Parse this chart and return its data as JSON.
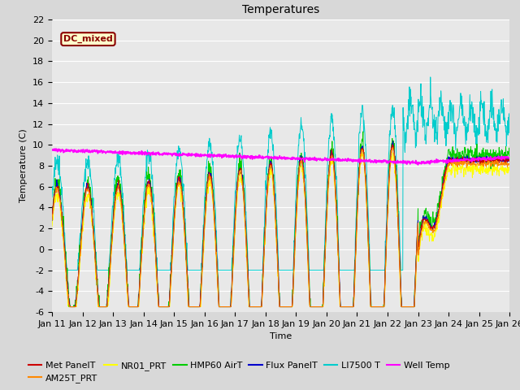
{
  "title": "Temperatures",
  "xlabel": "Time",
  "ylabel": "Temperature (C)",
  "ylim": [
    -6,
    22
  ],
  "yticks": [
    -6,
    -4,
    -2,
    0,
    2,
    4,
    6,
    8,
    10,
    12,
    14,
    16,
    18,
    20,
    22
  ],
  "series_colors": {
    "Met PanelT": "#cc0000",
    "AM25T_PRT": "#ff8800",
    "NR01_PRT": "#ffff00",
    "HMP60 AirT": "#00cc00",
    "Flux PanelT": "#0000cc",
    "LI7500 T": "#00cccc",
    "Well Temp": "#ff00ff"
  },
  "annotation_text": "DC_mixed",
  "plot_bg_color": "#e8e8e8",
  "title_fontsize": 10,
  "axis_fontsize": 8,
  "legend_fontsize": 8,
  "figsize": [
    6.4,
    4.8
  ],
  "dpi": 100
}
